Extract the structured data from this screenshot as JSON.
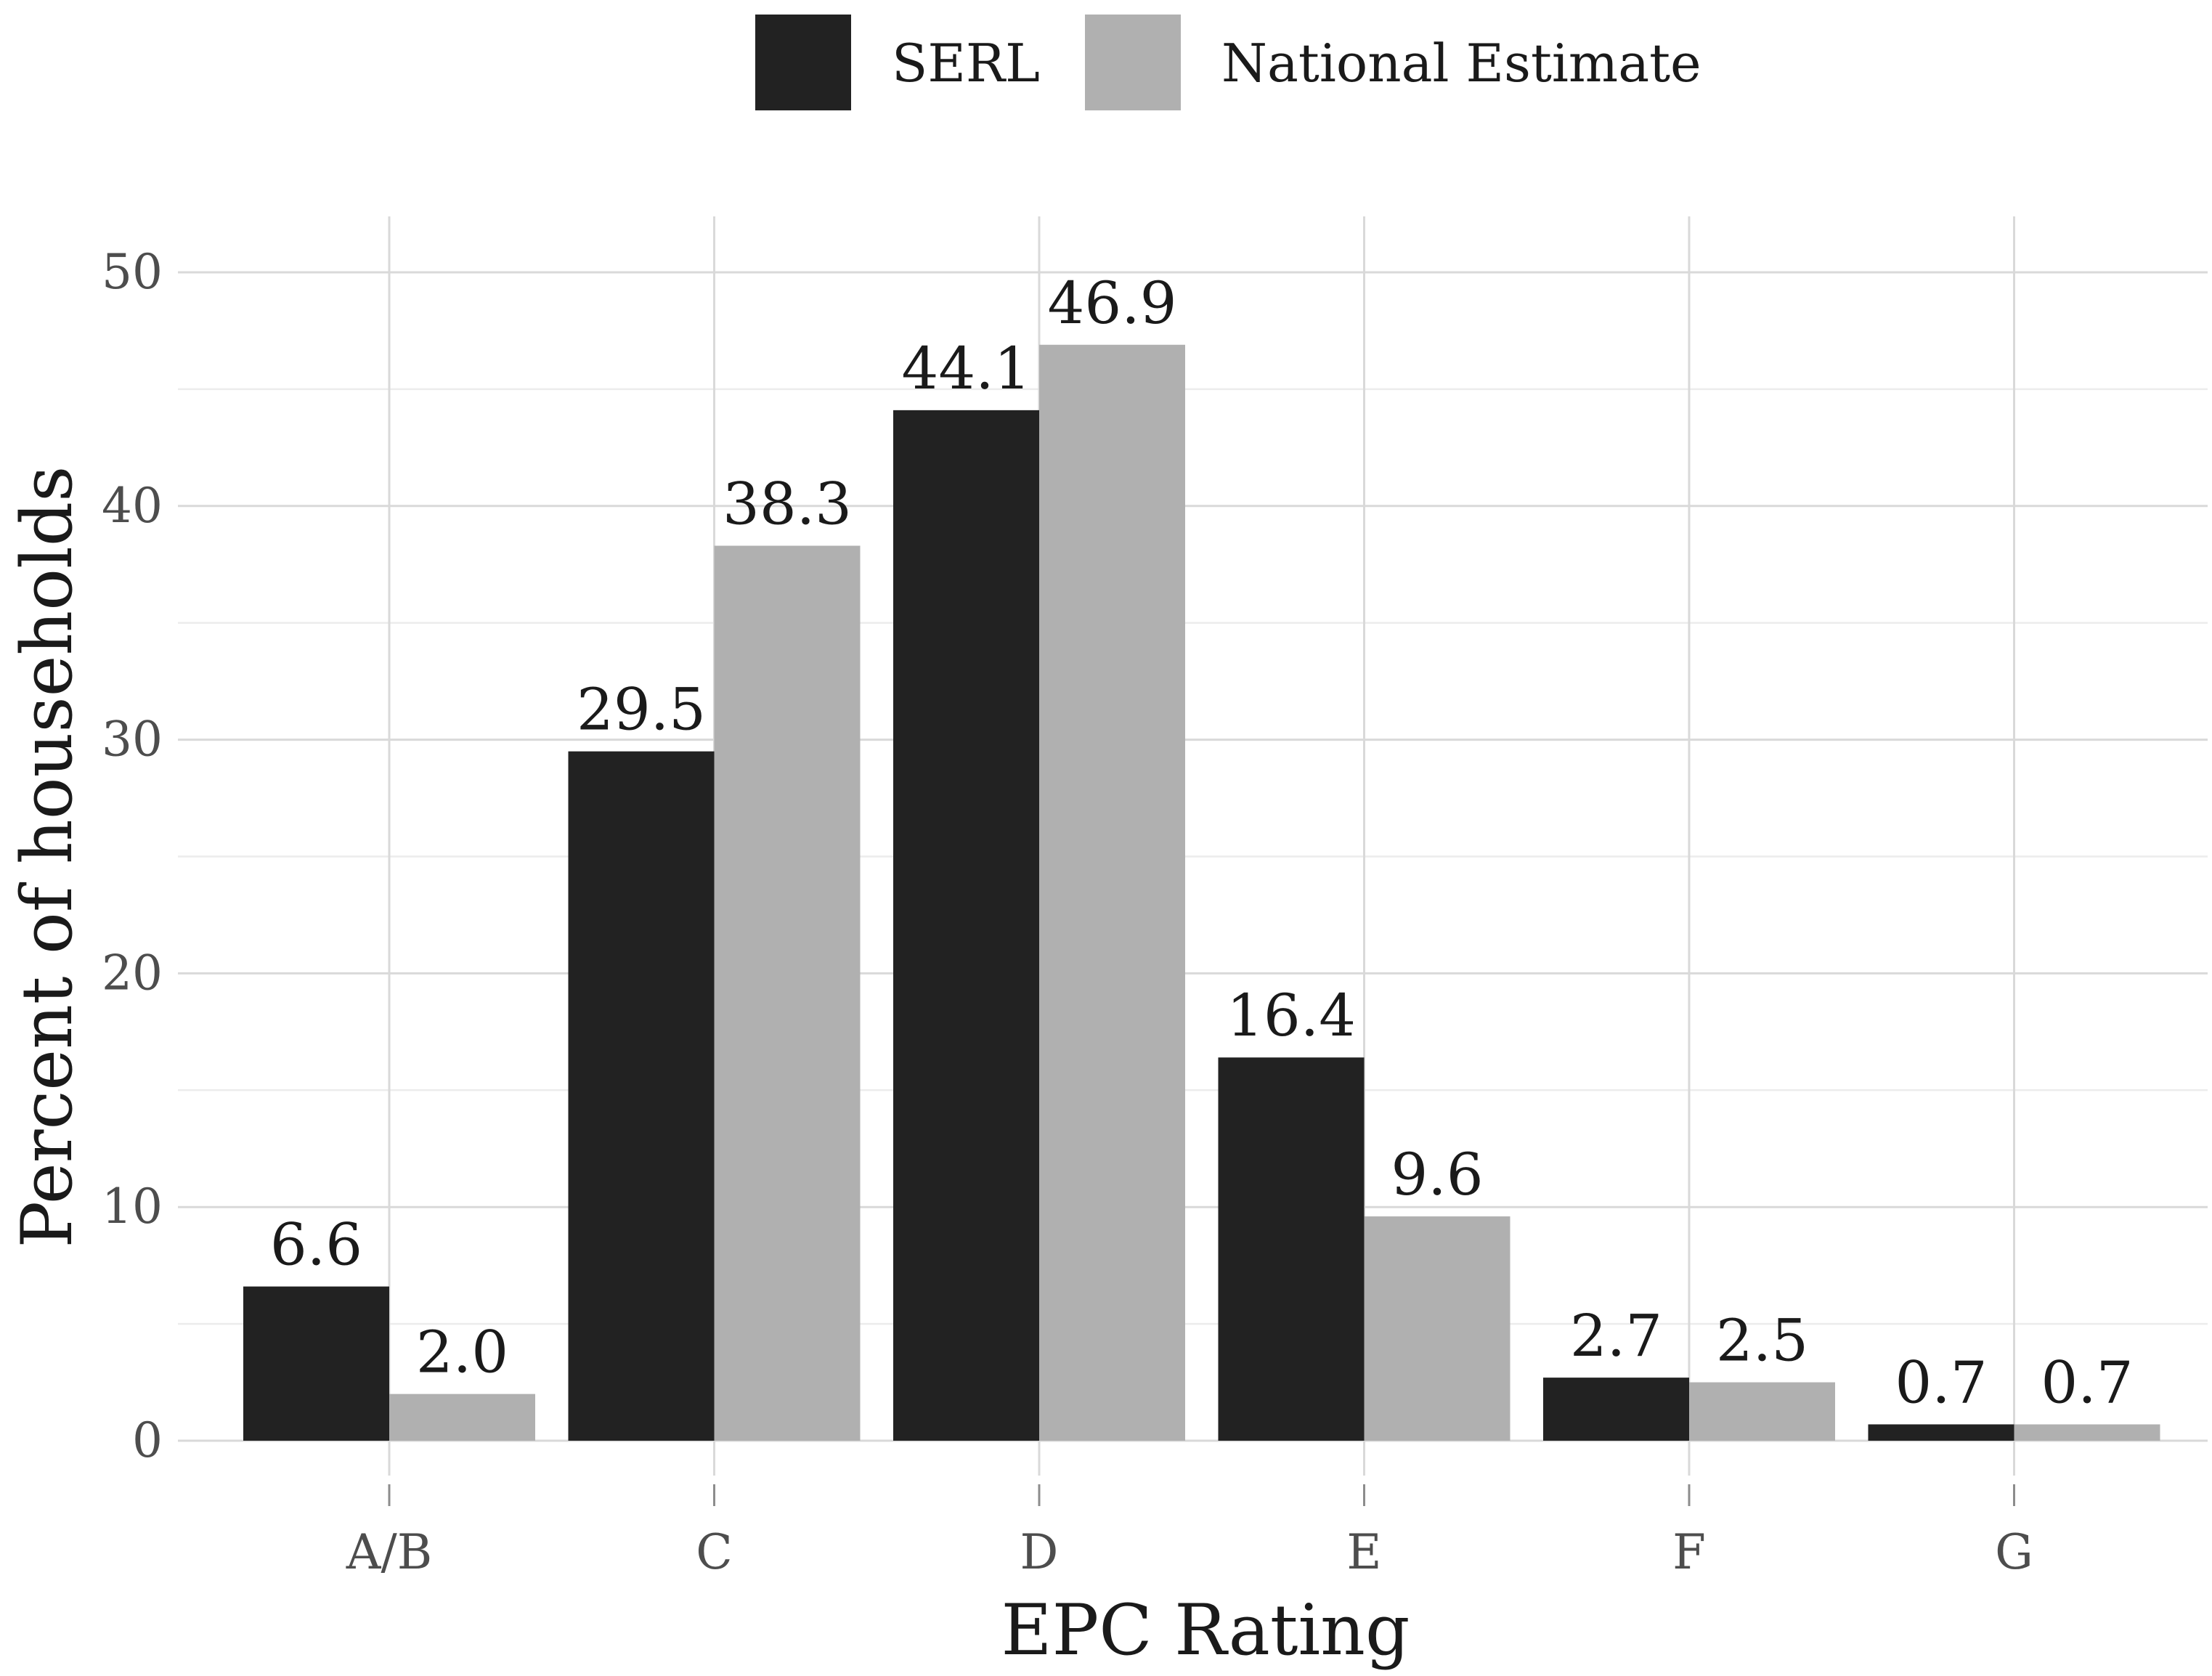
{
  "chart_data": {
    "type": "bar",
    "title": "",
    "xlabel": "EPC Rating",
    "ylabel": "Percent of households",
    "categories": [
      "A/B",
      "C",
      "D",
      "E",
      "F",
      "G"
    ],
    "series": [
      {
        "name": "SERL",
        "color": "#222222",
        "values": [
          6.6,
          29.5,
          44.1,
          16.4,
          2.7,
          0.7
        ],
        "labels": [
          "6.6",
          "29.5",
          "44.1",
          "16.4",
          "2.7",
          "0.7"
        ]
      },
      {
        "name": "National Estimate",
        "color": "#b0b0b0",
        "values": [
          2.0,
          38.3,
          46.9,
          9.6,
          2.5,
          0.7
        ],
        "labels": [
          "2.0",
          "38.3",
          "46.9",
          "9.6",
          "2.5",
          "0.7"
        ]
      }
    ],
    "ylim": [
      0,
      52
    ],
    "yticks": [
      0,
      10,
      20,
      30,
      40,
      50
    ],
    "ytick_labels": [
      "0",
      "10",
      "20",
      "30",
      "40",
      "50"
    ],
    "grid": true,
    "legend_position": "top"
  }
}
